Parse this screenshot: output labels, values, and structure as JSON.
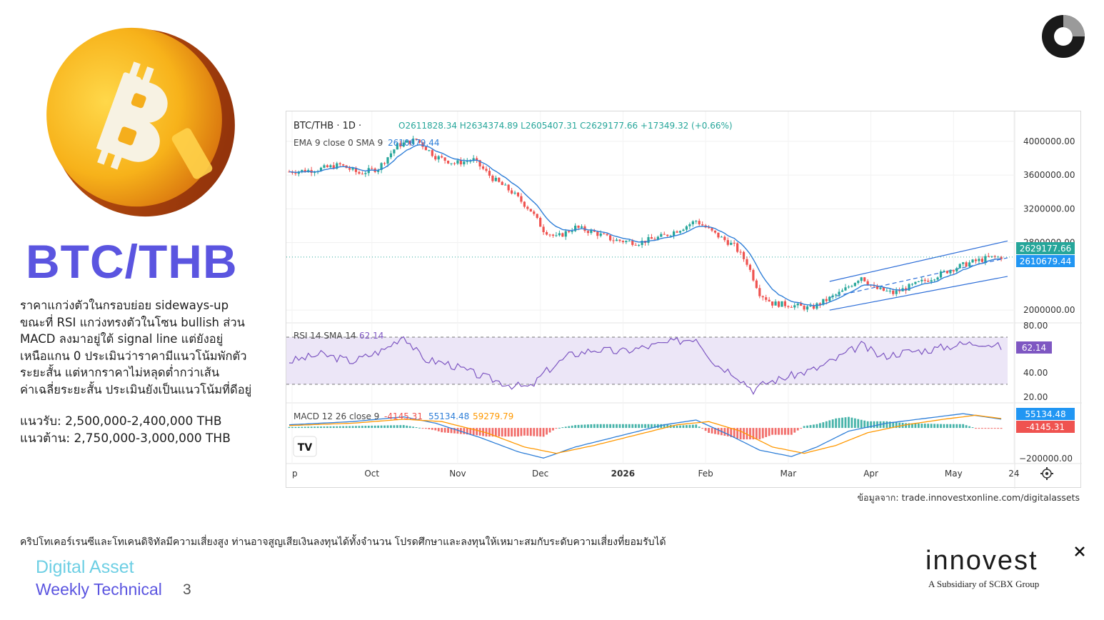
{
  "headline": "BTC/THB",
  "description": [
    "ราคาแกว่งตัวในกรอบย่อย sideways-up",
    "ขณะที่ RSI แกว่งทรงตัวในโซน bullish ส่วน",
    "MACD ลงมาอยู่ใต้ signal line แต่ยังอยู่",
    "เหนือแกน 0 ประเมินว่าราคามีแนวโน้มพักตัว",
    "ระยะสั้น แต่หากราคาไม่หลุดต่ำกว่าเส้น",
    "ค่าเฉลี่ยระยะสั้น ประเมินยังเป็นแนวโน้มที่ดีอยู่"
  ],
  "support": "แนวรับ: 2,500,000-2,400,000 THB",
  "resistance": "แนวต้าน: 2,750,000-3,000,000 THB",
  "source": "ข้อมูลจาก: trade.innovestxonline.com/digitalassets",
  "disclaimer": "คริปโทเคอร์เรนซีและโทเคนดิจิทัลมีความเสี่ยงสูง ท่านอาจสูญเสียเงินลงทุนได้ทั้งจำนวน โปรดศึกษาและลงทุนให้เหมาะสมกับระดับความเสี่ยงที่ยอมรับได้",
  "footer": {
    "line1": "Digital Asset",
    "line2": "Weekly Technical",
    "page": "3"
  },
  "brand": {
    "name": "innovest",
    "sub": "A Subsidiary of SCBX Group"
  },
  "colors": {
    "accent": "#5b55e0",
    "accent_light": "#6ecfe4",
    "candle_up": "#26a69a",
    "candle_down": "#ef5350",
    "ema": "#2f7fd8",
    "rsi": "#7e57c2",
    "macd": "#2f7fd8",
    "signal": "#ff9800"
  },
  "chart_data": {
    "type": "candlestick",
    "symbol_line": "BTC/THB · 1D · ",
    "ohlc_text": "O2611828.34 H2634374.89 L2605407.31 C2629177.66 +17349.32 (+0.66%)",
    "ema_label": "EMA 9 close 0 SMA 9",
    "ema_value": "2610679.44",
    "price_ticks": [
      "4000000.00",
      "3600000.00",
      "3200000.00",
      "2800000.00",
      "2000000.00"
    ],
    "price_axis": [
      1900000,
      4100000
    ],
    "last_price": "2629177.66",
    "last_ema": "2610679.44",
    "x_labels": [
      "p",
      "Oct",
      "Nov",
      "Dec",
      "2026",
      "Feb",
      "Mar",
      "Apr",
      "May",
      "24"
    ],
    "close_path": [
      [
        0,
        3640000
      ],
      [
        8,
        3660000
      ],
      [
        16,
        3720000
      ],
      [
        22,
        3620000
      ],
      [
        28,
        3680000
      ],
      [
        34,
        3950000
      ],
      [
        40,
        4020000
      ],
      [
        46,
        3820000
      ],
      [
        52,
        3740000
      ],
      [
        58,
        3780000
      ],
      [
        64,
        3560000
      ],
      [
        70,
        3400000
      ],
      [
        76,
        3180000
      ],
      [
        80,
        2950000
      ],
      [
        84,
        2860000
      ],
      [
        90,
        2980000
      ],
      [
        96,
        2920000
      ],
      [
        102,
        2830000
      ],
      [
        110,
        2800000
      ],
      [
        118,
        2880000
      ],
      [
        124,
        2980000
      ],
      [
        128,
        3060000
      ],
      [
        134,
        2900000
      ],
      [
        140,
        2760000
      ],
      [
        144,
        2560000
      ],
      [
        148,
        2200000
      ],
      [
        152,
        2080000
      ],
      [
        158,
        2060000
      ],
      [
        164,
        2020000
      ],
      [
        168,
        2100000
      ],
      [
        174,
        2220000
      ],
      [
        180,
        2400000
      ],
      [
        184,
        2260000
      ],
      [
        190,
        2200000
      ],
      [
        196,
        2290000
      ],
      [
        202,
        2380000
      ],
      [
        208,
        2480000
      ],
      [
        214,
        2560000
      ],
      [
        220,
        2620000
      ],
      [
        224,
        2629000
      ]
    ],
    "channel": {
      "upper": [
        [
          170,
          2340000
        ],
        [
          226,
          2820000
        ]
      ],
      "mid": [
        [
          170,
          2150000
        ],
        [
          226,
          2620000
        ]
      ],
      "lower": [
        [
          170,
          2000000
        ],
        [
          226,
          2400000
        ]
      ]
    },
    "rsi": {
      "label": "RSI 14 SMA 14",
      "value": "62.14",
      "axis": [
        20,
        80
      ],
      "ticks": [
        "80.00",
        "40.00",
        "20.00"
      ],
      "series": [
        [
          0,
          50
        ],
        [
          10,
          56
        ],
        [
          20,
          50
        ],
        [
          30,
          60
        ],
        [
          36,
          72
        ],
        [
          42,
          52
        ],
        [
          50,
          48
        ],
        [
          60,
          38
        ],
        [
          70,
          30
        ],
        [
          76,
          28
        ],
        [
          80,
          40
        ],
        [
          88,
          55
        ],
        [
          96,
          60
        ],
        [
          104,
          58
        ],
        [
          112,
          62
        ],
        [
          120,
          66
        ],
        [
          128,
          70
        ],
        [
          134,
          48
        ],
        [
          140,
          40
        ],
        [
          146,
          26
        ],
        [
          150,
          32
        ],
        [
          158,
          38
        ],
        [
          166,
          44
        ],
        [
          172,
          52
        ],
        [
          180,
          64
        ],
        [
          186,
          54
        ],
        [
          194,
          58
        ],
        [
          202,
          60
        ],
        [
          210,
          64
        ],
        [
          218,
          66
        ],
        [
          224,
          62.14
        ]
      ]
    },
    "macd": {
      "label": "MACD 12 26 close 9",
      "hist_value": "-4145.31",
      "macd_value": "55134.48",
      "signal_value": "59279.79",
      "axis": [
        -220000,
        140000
      ],
      "tick": "−200000.00",
      "macd_line": [
        [
          0,
          20000
        ],
        [
          20,
          40000
        ],
        [
          36,
          70000
        ],
        [
          46,
          30000
        ],
        [
          60,
          -60000
        ],
        [
          72,
          -150000
        ],
        [
          80,
          -190000
        ],
        [
          90,
          -120000
        ],
        [
          104,
          -50000
        ],
        [
          118,
          20000
        ],
        [
          128,
          50000
        ],
        [
          138,
          -40000
        ],
        [
          148,
          -140000
        ],
        [
          158,
          -180000
        ],
        [
          166,
          -120000
        ],
        [
          176,
          -20000
        ],
        [
          188,
          30000
        ],
        [
          200,
          60000
        ],
        [
          212,
          90000
        ],
        [
          224,
          55134
        ]
      ],
      "signal_line": [
        [
          0,
          15000
        ],
        [
          20,
          30000
        ],
        [
          36,
          55000
        ],
        [
          48,
          40000
        ],
        [
          62,
          -30000
        ],
        [
          74,
          -120000
        ],
        [
          84,
          -160000
        ],
        [
          96,
          -110000
        ],
        [
          110,
          -40000
        ],
        [
          122,
          20000
        ],
        [
          132,
          40000
        ],
        [
          142,
          -20000
        ],
        [
          152,
          -120000
        ],
        [
          162,
          -160000
        ],
        [
          172,
          -110000
        ],
        [
          182,
          -30000
        ],
        [
          194,
          20000
        ],
        [
          206,
          55000
        ],
        [
          216,
          80000
        ],
        [
          224,
          59280
        ]
      ]
    }
  }
}
